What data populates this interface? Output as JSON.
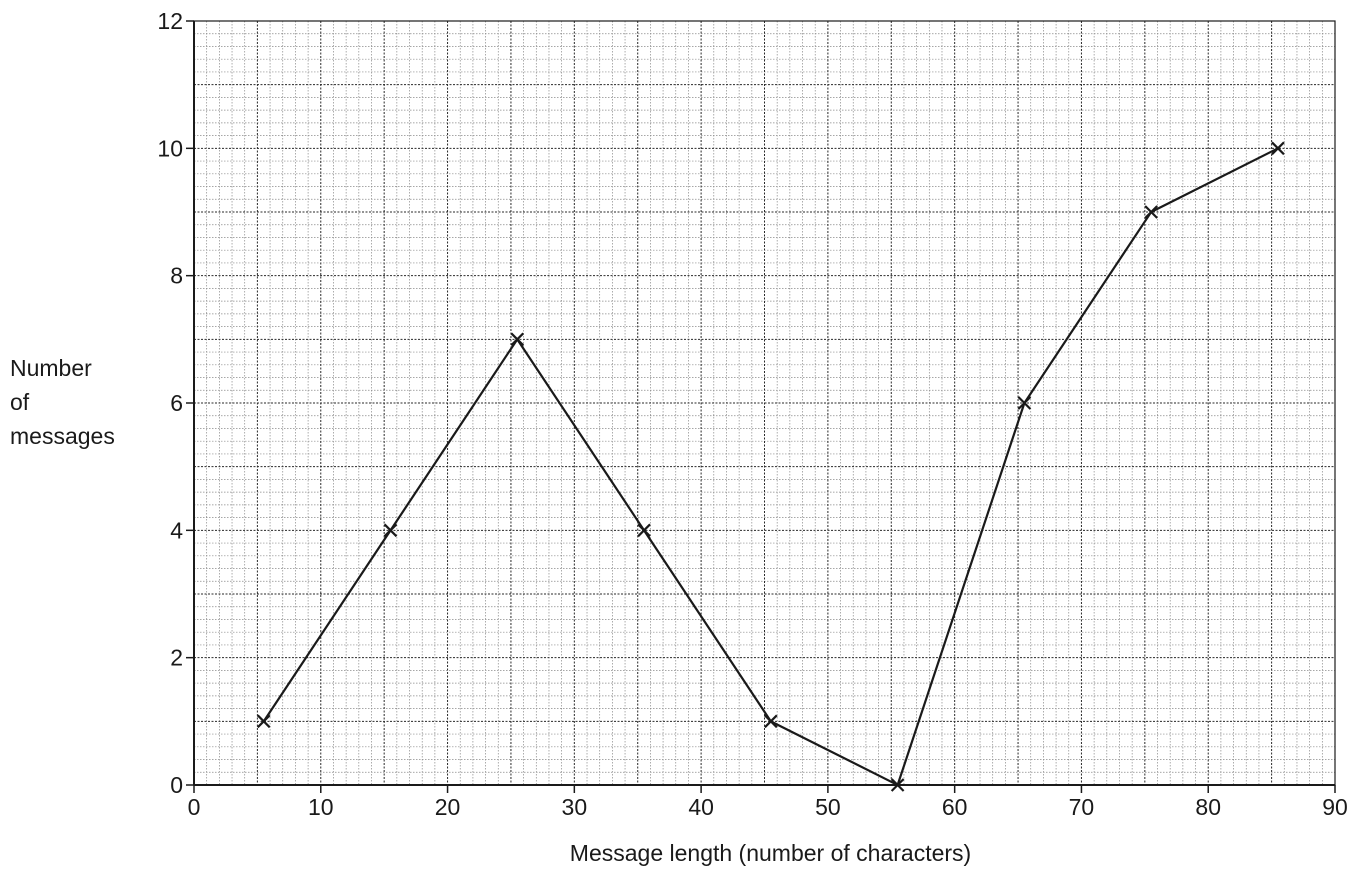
{
  "chart_data": {
    "type": "line",
    "title": "",
    "xlabel": "Message length (number of characters)",
    "ylabel_lines": [
      "Number",
      "of",
      "messages"
    ],
    "xlim": [
      0,
      90
    ],
    "ylim": [
      0,
      12
    ],
    "x_ticks": [
      0,
      10,
      20,
      30,
      40,
      50,
      60,
      70,
      80,
      90
    ],
    "y_ticks": [
      0,
      2,
      4,
      6,
      8,
      10,
      12
    ],
    "grid": true,
    "marker": "x",
    "series": [
      {
        "x": [
          5.5,
          15.5,
          25.5,
          35.5,
          45.5,
          55.5,
          65.5,
          75.5,
          85.5
        ],
        "y": [
          1,
          4,
          7,
          4,
          1,
          0,
          6,
          9,
          10
        ]
      }
    ]
  }
}
